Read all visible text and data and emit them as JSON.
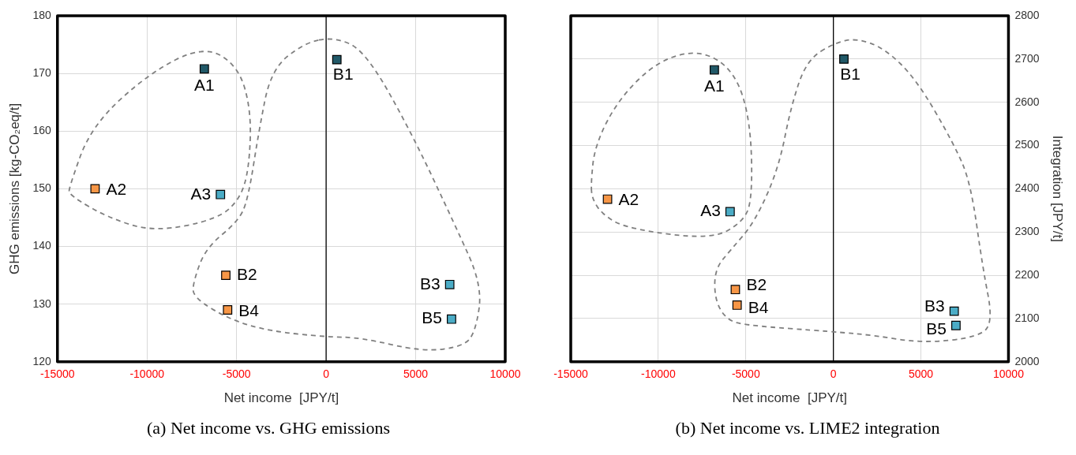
{
  "chart_data": [
    {
      "type": "scatter",
      "xlabel": "Net income  [JPY/t]",
      "ylabel": "GHG emissions [kg-CO₂eq/t]",
      "x": [
        -6800,
        600,
        -12900,
        -5900,
        -5600,
        -5500,
        6900,
        7000
      ],
      "series": [
        {
          "values": [
            170.8,
            172.4,
            150.0,
            149.0,
            135.0,
            129.0,
            133.4,
            127.4
          ],
          "colors": [
            "#215968",
            "#215968",
            "#f79646",
            "#4bacc6",
            "#f79646",
            "#f79646",
            "#4bacc6",
            "#4bacc6"
          ]
        }
      ],
      "xlim": [
        -15000,
        10000
      ],
      "xticks": [
        -15000,
        -10000,
        -5000,
        0,
        5000,
        10000
      ],
      "ylim": [
        120,
        180
      ],
      "yticks": [
        120,
        130,
        140,
        150,
        160,
        170,
        180
      ],
      "grid": true,
      "marker": "square",
      "ref_lines": [
        {
          "axis": "x",
          "value": 0,
          "color": "#000000"
        }
      ],
      "annotations": [
        {
          "text": "A1",
          "x": -6800,
          "y": 170.8
        },
        {
          "text": "B1",
          "x": 600,
          "y": 172.4
        },
        {
          "text": "A2",
          "x": -12900,
          "y": 150.0
        },
        {
          "text": "A3",
          "x": -5900,
          "y": 149.0
        },
        {
          "text": "B2",
          "x": -5600,
          "y": 135.0
        },
        {
          "text": "B4",
          "x": -5500,
          "y": 129.0
        },
        {
          "text": "B3",
          "x": 6900,
          "y": 133.4
        },
        {
          "text": "B5",
          "x": 7000,
          "y": 127.4
        },
        "(a) Net income vs. GHG emissions"
      ]
    },
    {
      "type": "scatter",
      "xlabel": "Net income  [JPY/t]",
      "ylabel": "Integration [JPY/t]",
      "x": [
        -6800,
        600,
        -12900,
        -5900,
        -5600,
        -5500,
        6900,
        7000
      ],
      "series": [
        {
          "values": [
            2675,
            2700,
            2376,
            2347,
            2167,
            2131,
            2117,
            2084
          ],
          "colors": [
            "#215968",
            "#215968",
            "#f79646",
            "#4bacc6",
            "#f79646",
            "#f79646",
            "#4bacc6",
            "#4bacc6"
          ]
        }
      ],
      "xlim": [
        -15000,
        10000
      ],
      "xticks": [
        -15000,
        -10000,
        -5000,
        0,
        5000,
        10000
      ],
      "ylim": [
        2000,
        2800
      ],
      "yticks": [
        2000,
        2100,
        2200,
        2300,
        2400,
        2500,
        2600,
        2700,
        2800
      ],
      "grid": true,
      "marker": "square",
      "ref_lines": [
        {
          "axis": "x",
          "value": 0,
          "color": "#000000"
        }
      ],
      "annotations": [
        {
          "text": "A1",
          "x": -6800,
          "y": 2675
        },
        {
          "text": "B1",
          "x": 600,
          "y": 2700
        },
        {
          "text": "A2",
          "x": -12900,
          "y": 2376
        },
        {
          "text": "A3",
          "x": -5900,
          "y": 2347
        },
        {
          "text": "B2",
          "x": -5600,
          "y": 2167
        },
        {
          "text": "B4",
          "x": -5500,
          "y": 2131
        },
        {
          "text": "B3",
          "x": 6900,
          "y": 2117
        },
        {
          "text": "B5",
          "x": 7000,
          "y": 2084
        },
        "(b) Net income vs. LIME2 integration"
      ]
    }
  ]
}
